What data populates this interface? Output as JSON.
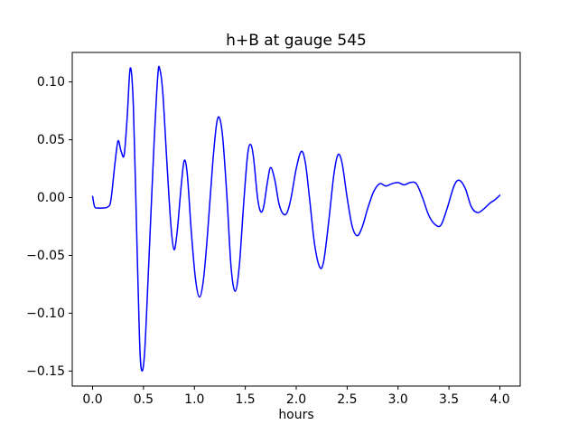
{
  "chart_data": {
    "type": "line",
    "title": "h+B at gauge 545",
    "xlabel": "hours",
    "ylabel": "",
    "legend": "none",
    "grid": false,
    "line_color": "#0000ff",
    "line_width": 1.5,
    "xlim": [
      -0.2,
      4.2
    ],
    "ylim": [
      -0.163,
      0.1255
    ],
    "xticks": {
      "values": [
        0.0,
        0.5,
        1.0,
        1.5,
        2.0,
        2.5,
        3.0,
        3.5,
        4.0
      ],
      "labels": [
        "0.0",
        "0.5",
        "1.0",
        "1.5",
        "2.0",
        "2.5",
        "3.0",
        "3.5",
        "4.0"
      ]
    },
    "yticks": {
      "values": [
        -0.15,
        -0.1,
        -0.05,
        0.0,
        0.05,
        0.1
      ],
      "labels": [
        "−0.15",
        "−0.10",
        "−0.05",
        "0.00",
        "0.05",
        "0.10"
      ]
    },
    "x": [
      0.0,
      0.02,
      0.05,
      0.1,
      0.15,
      0.18,
      0.22,
      0.25,
      0.28,
      0.31,
      0.34,
      0.37,
      0.4,
      0.43,
      0.46,
      0.48,
      0.51,
      0.55,
      0.6,
      0.64,
      0.66,
      0.69,
      0.73,
      0.77,
      0.8,
      0.83,
      0.87,
      0.9,
      0.93,
      0.97,
      1.01,
      1.05,
      1.09,
      1.13,
      1.18,
      1.22,
      1.25,
      1.28,
      1.32,
      1.36,
      1.4,
      1.44,
      1.48,
      1.52,
      1.55,
      1.58,
      1.62,
      1.65,
      1.68,
      1.72,
      1.75,
      1.79,
      1.83,
      1.87,
      1.91,
      1.95,
      2.0,
      2.05,
      2.09,
      2.13,
      2.18,
      2.23,
      2.27,
      2.32,
      2.37,
      2.41,
      2.45,
      2.5,
      2.55,
      2.6,
      2.65,
      2.7,
      2.76,
      2.82,
      2.88,
      2.94,
      3.0,
      3.06,
      3.12,
      3.18,
      3.24,
      3.3,
      3.36,
      3.42,
      3.48,
      3.55,
      3.6,
      3.66,
      3.72,
      3.78,
      3.84,
      3.9,
      3.95,
      4.0
    ],
    "y": [
      0.001,
      -0.008,
      -0.009,
      -0.009,
      -0.008,
      -0.002,
      0.03,
      0.049,
      0.04,
      0.037,
      0.07,
      0.112,
      0.08,
      -0.02,
      -0.12,
      -0.149,
      -0.135,
      -0.06,
      0.04,
      0.105,
      0.111,
      0.09,
      0.03,
      -0.025,
      -0.045,
      -0.03,
      0.01,
      0.032,
      0.02,
      -0.03,
      -0.07,
      -0.086,
      -0.07,
      -0.03,
      0.03,
      0.065,
      0.068,
      0.05,
      0.0,
      -0.06,
      -0.081,
      -0.06,
      -0.01,
      0.035,
      0.046,
      0.035,
      0.0,
      -0.012,
      -0.008,
      0.015,
      0.026,
      0.015,
      -0.005,
      -0.014,
      -0.013,
      0.0,
      0.025,
      0.04,
      0.03,
      0.0,
      -0.04,
      -0.06,
      -0.055,
      -0.02,
      0.02,
      0.037,
      0.03,
      0.0,
      -0.025,
      -0.033,
      -0.025,
      -0.01,
      0.005,
      0.012,
      0.01,
      0.012,
      0.013,
      0.011,
      0.013,
      0.012,
      0.0,
      -0.015,
      -0.023,
      -0.024,
      -0.01,
      0.01,
      0.015,
      0.008,
      -0.008,
      -0.013,
      -0.01,
      -0.005,
      -0.002,
      0.002
    ]
  }
}
